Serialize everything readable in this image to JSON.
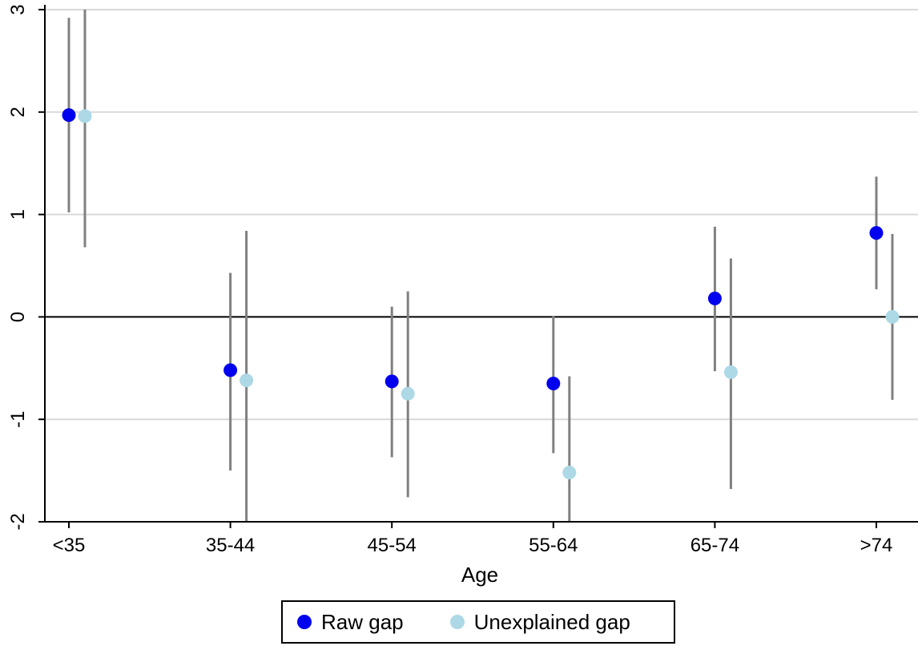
{
  "chart_data": {
    "type": "scatter",
    "xlabel": "Age",
    "ylabel": "",
    "categories": [
      "<35",
      "35-44",
      "45-54",
      "55-64",
      "65-74",
      ">74"
    ],
    "ylim": [
      -2,
      3
    ],
    "yticks": [
      -2,
      -1,
      0,
      1,
      2,
      3
    ],
    "grid": true,
    "legend_position": "bottom",
    "reference_line_y": 0,
    "series": [
      {
        "name": "Raw gap",
        "color": "#0000EE",
        "values": [
          1.97,
          -0.52,
          -0.63,
          -0.65,
          0.18,
          0.82
        ],
        "ci_low": [
          1.02,
          -1.5,
          -1.37,
          -1.33,
          -0.53,
          0.27
        ],
        "ci_high": [
          2.92,
          0.43,
          0.1,
          0.01,
          0.88,
          1.37
        ]
      },
      {
        "name": "Unexplained gap",
        "color": "#ADD8E6",
        "values": [
          1.96,
          -0.62,
          -0.75,
          -1.52,
          -0.54,
          0.0
        ],
        "ci_low": [
          0.68,
          -2.0,
          -1.76,
          -2.0,
          -1.68,
          -0.81
        ],
        "ci_high": [
          3.0,
          0.84,
          0.25,
          -0.58,
          0.57,
          0.81
        ]
      }
    ]
  },
  "colors": {
    "ci": "#808080",
    "grid": "#D9D9D9",
    "zero_line": "#000000"
  }
}
